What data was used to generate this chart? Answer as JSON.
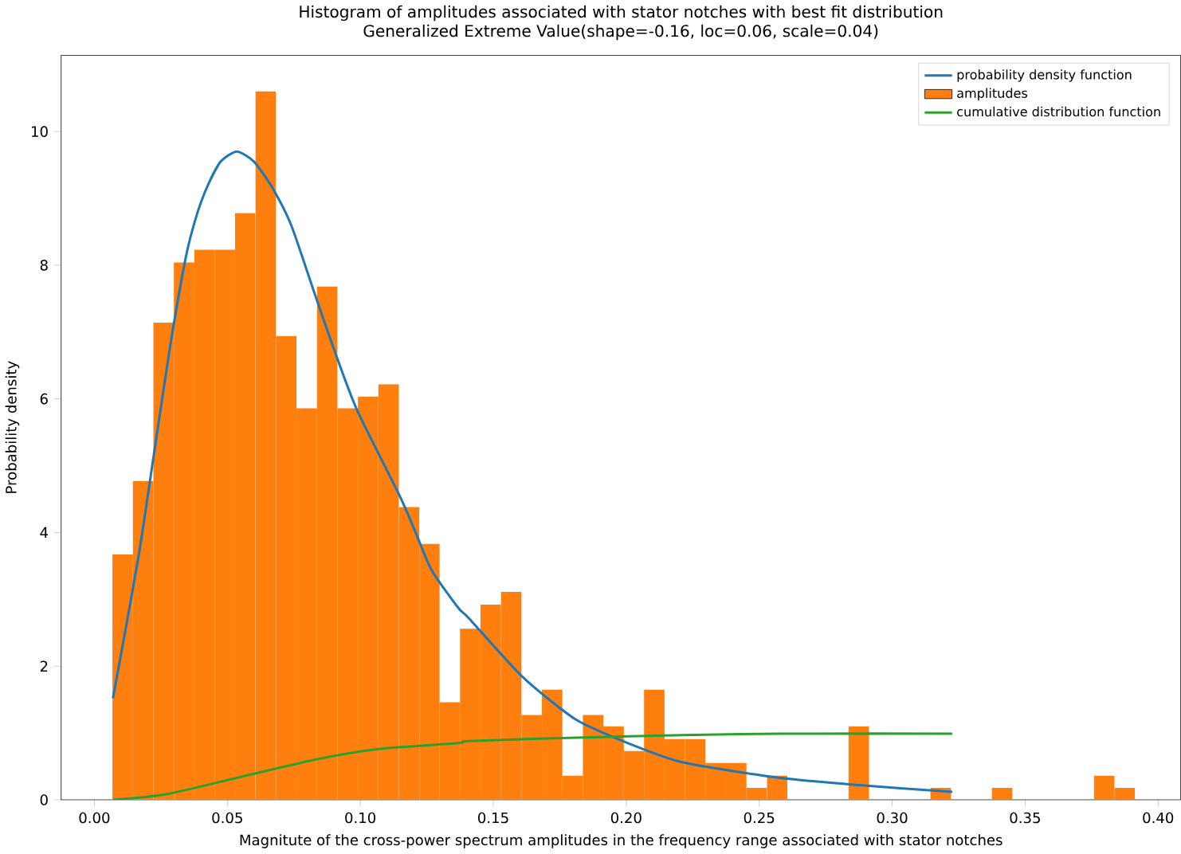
{
  "chart_data": {
    "type": "histogram",
    "title": "Histogram of amplitudes associated with stator notches with best fit distribution",
    "subtitle": "Generalized Extreme Value(shape=-0.16, loc=0.06, scale=0.04)",
    "xlabel": "Magnitute of the cross-power spectrum amplitudes in the frequency range associated with stator notches",
    "ylabel": "Probability density",
    "bins": [
      0.0068,
      0.0145,
      0.0222,
      0.0299,
      0.0376,
      0.0453,
      0.0529,
      0.0606,
      0.0683,
      0.076,
      0.0837,
      0.0914,
      0.0991,
      0.1068,
      0.1145,
      0.1222,
      0.1298,
      0.1375,
      0.1452,
      0.1529,
      0.1606,
      0.1683,
      0.176,
      0.1837,
      0.1914,
      0.1991,
      0.2067,
      0.2144,
      0.2221,
      0.2298,
      0.2375,
      0.2452,
      0.2529,
      0.2606,
      0.2683,
      0.276,
      0.2836,
      0.2913,
      0.299,
      0.3067,
      0.3144,
      0.3221,
      0.3298,
      0.3375,
      0.3452,
      0.3529,
      0.3605,
      0.3682,
      0.3759,
      0.3836,
      0.3913
    ],
    "series": [
      {
        "name": "probability density function",
        "type": "line",
        "color": "#1f77b4",
        "x": [
          0.007,
          0.0164,
          0.0225,
          0.0285,
          0.0345,
          0.0385,
          0.0425,
          0.0475,
          0.0536,
          0.06,
          0.0666,
          0.074,
          0.0827,
          0.0905,
          0.0988,
          0.1148,
          0.1209,
          0.1269,
          0.1369,
          0.141,
          0.161,
          0.1811,
          0.2012,
          0.2213,
          0.2574,
          0.2875,
          0.3226
        ],
        "values": [
          1.52,
          3.59,
          5.2,
          6.79,
          8.14,
          8.75,
          9.18,
          9.55,
          9.7,
          9.55,
          9.18,
          8.6,
          7.59,
          6.7,
          5.83,
          4.55,
          3.99,
          3.43,
          2.87,
          2.71,
          1.84,
          1.2,
          0.84,
          0.56,
          0.33,
          0.22,
          0.12
        ]
      },
      {
        "name": "amplitudes",
        "color": "#ff7f0e",
        "values": [
          3.67,
          4.77,
          7.14,
          8.04,
          8.23,
          8.23,
          8.78,
          10.6,
          6.94,
          5.86,
          7.68,
          5.86,
          6.03,
          6.22,
          4.38,
          3.83,
          1.46,
          2.56,
          2.92,
          3.11,
          1.27,
          1.65,
          0.36,
          1.27,
          1.1,
          0.73,
          1.65,
          0.91,
          0.91,
          0.55,
          0.55,
          0.18,
          0.36,
          0,
          0,
          0,
          1.1,
          0,
          0,
          0,
          0.18,
          0,
          0,
          0.18,
          0,
          0,
          0,
          0,
          0.36,
          0.18
        ]
      },
      {
        "name": "cumulative distribution function",
        "type": "line",
        "color": "#2ca02c",
        "x": [
          0.007,
          0.0265,
          0.0526,
          0.0827,
          0.1068,
          0.1369,
          0.141,
          0.181,
          0.2213,
          0.2574,
          0.3226
        ],
        "values": [
          0,
          0.08,
          0.32,
          0.6,
          0.76,
          0.85,
          0.88,
          0.93,
          0.97,
          0.99,
          0.99
        ]
      }
    ],
    "xlim": [
      -0.0125,
      0.4085
    ],
    "ylim": [
      0,
      11.14
    ],
    "xticks": [
      {
        "value": 0,
        "label": "0.00"
      },
      {
        "value": 0.05,
        "label": "0.05"
      },
      {
        "value": 0.1,
        "label": "0.10"
      },
      {
        "value": 0.15,
        "label": "0.15"
      },
      {
        "value": 0.2,
        "label": "0.20"
      },
      {
        "value": 0.25,
        "label": "0.25"
      },
      {
        "value": 0.3,
        "label": "0.30"
      },
      {
        "value": 0.35,
        "label": "0.35"
      },
      {
        "value": 0.4,
        "label": "0.40"
      }
    ],
    "yticks": [
      0,
      2,
      4,
      6,
      8,
      10
    ],
    "grid": false,
    "legend": "top right"
  }
}
